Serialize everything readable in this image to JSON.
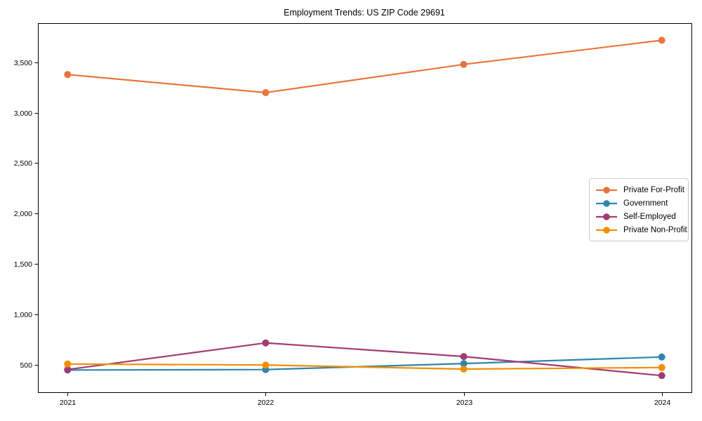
{
  "title": "Employment Trends: US ZIP Code 29691",
  "chart_data": {
    "type": "line",
    "title": "Employment Trends: US ZIP Code 29691",
    "categories": [
      "2021",
      "2022",
      "2023",
      "2024"
    ],
    "series": [
      {
        "name": "Private For-Profit",
        "color": "#E8763C",
        "values": [
          3380,
          3200,
          3480,
          3720
        ]
      },
      {
        "name": "Government",
        "color": "#2E86AB",
        "values": [
          445,
          450,
          510,
          575
        ]
      },
      {
        "name": "Self-Employed",
        "color": "#A23B72",
        "values": [
          450,
          715,
          580,
          390
        ]
      },
      {
        "name": "Private Non-Profit",
        "color": "#F18F01",
        "values": [
          505,
          495,
          455,
          470
        ]
      }
    ],
    "xlabel": "",
    "ylabel": "",
    "ylim": [
      225,
      3890
    ],
    "yticks": [
      500,
      1000,
      1500,
      2000,
      2500,
      3000,
      3500
    ],
    "ytick_labels": [
      "500",
      "1,000",
      "1,500",
      "2,000",
      "2,500",
      "3,000",
      "3,500"
    ],
    "grid": false,
    "legend_position": "center right",
    "marker": "circle",
    "axis_color": "#000000",
    "text_color": "#000000"
  }
}
